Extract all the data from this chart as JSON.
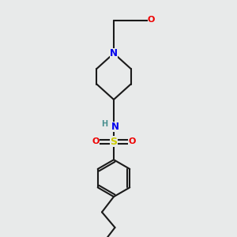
{
  "bg_color": "#e8eaea",
  "bond_color": "#1a1a1a",
  "N_color": "#0000ee",
  "O_color": "#ee0000",
  "S_color": "#cccc00",
  "H_color": "#4a9090",
  "line_width": 1.5,
  "font_size_atom": 7.5,
  "xlim": [
    0,
    10
  ],
  "ylim": [
    0,
    10
  ]
}
